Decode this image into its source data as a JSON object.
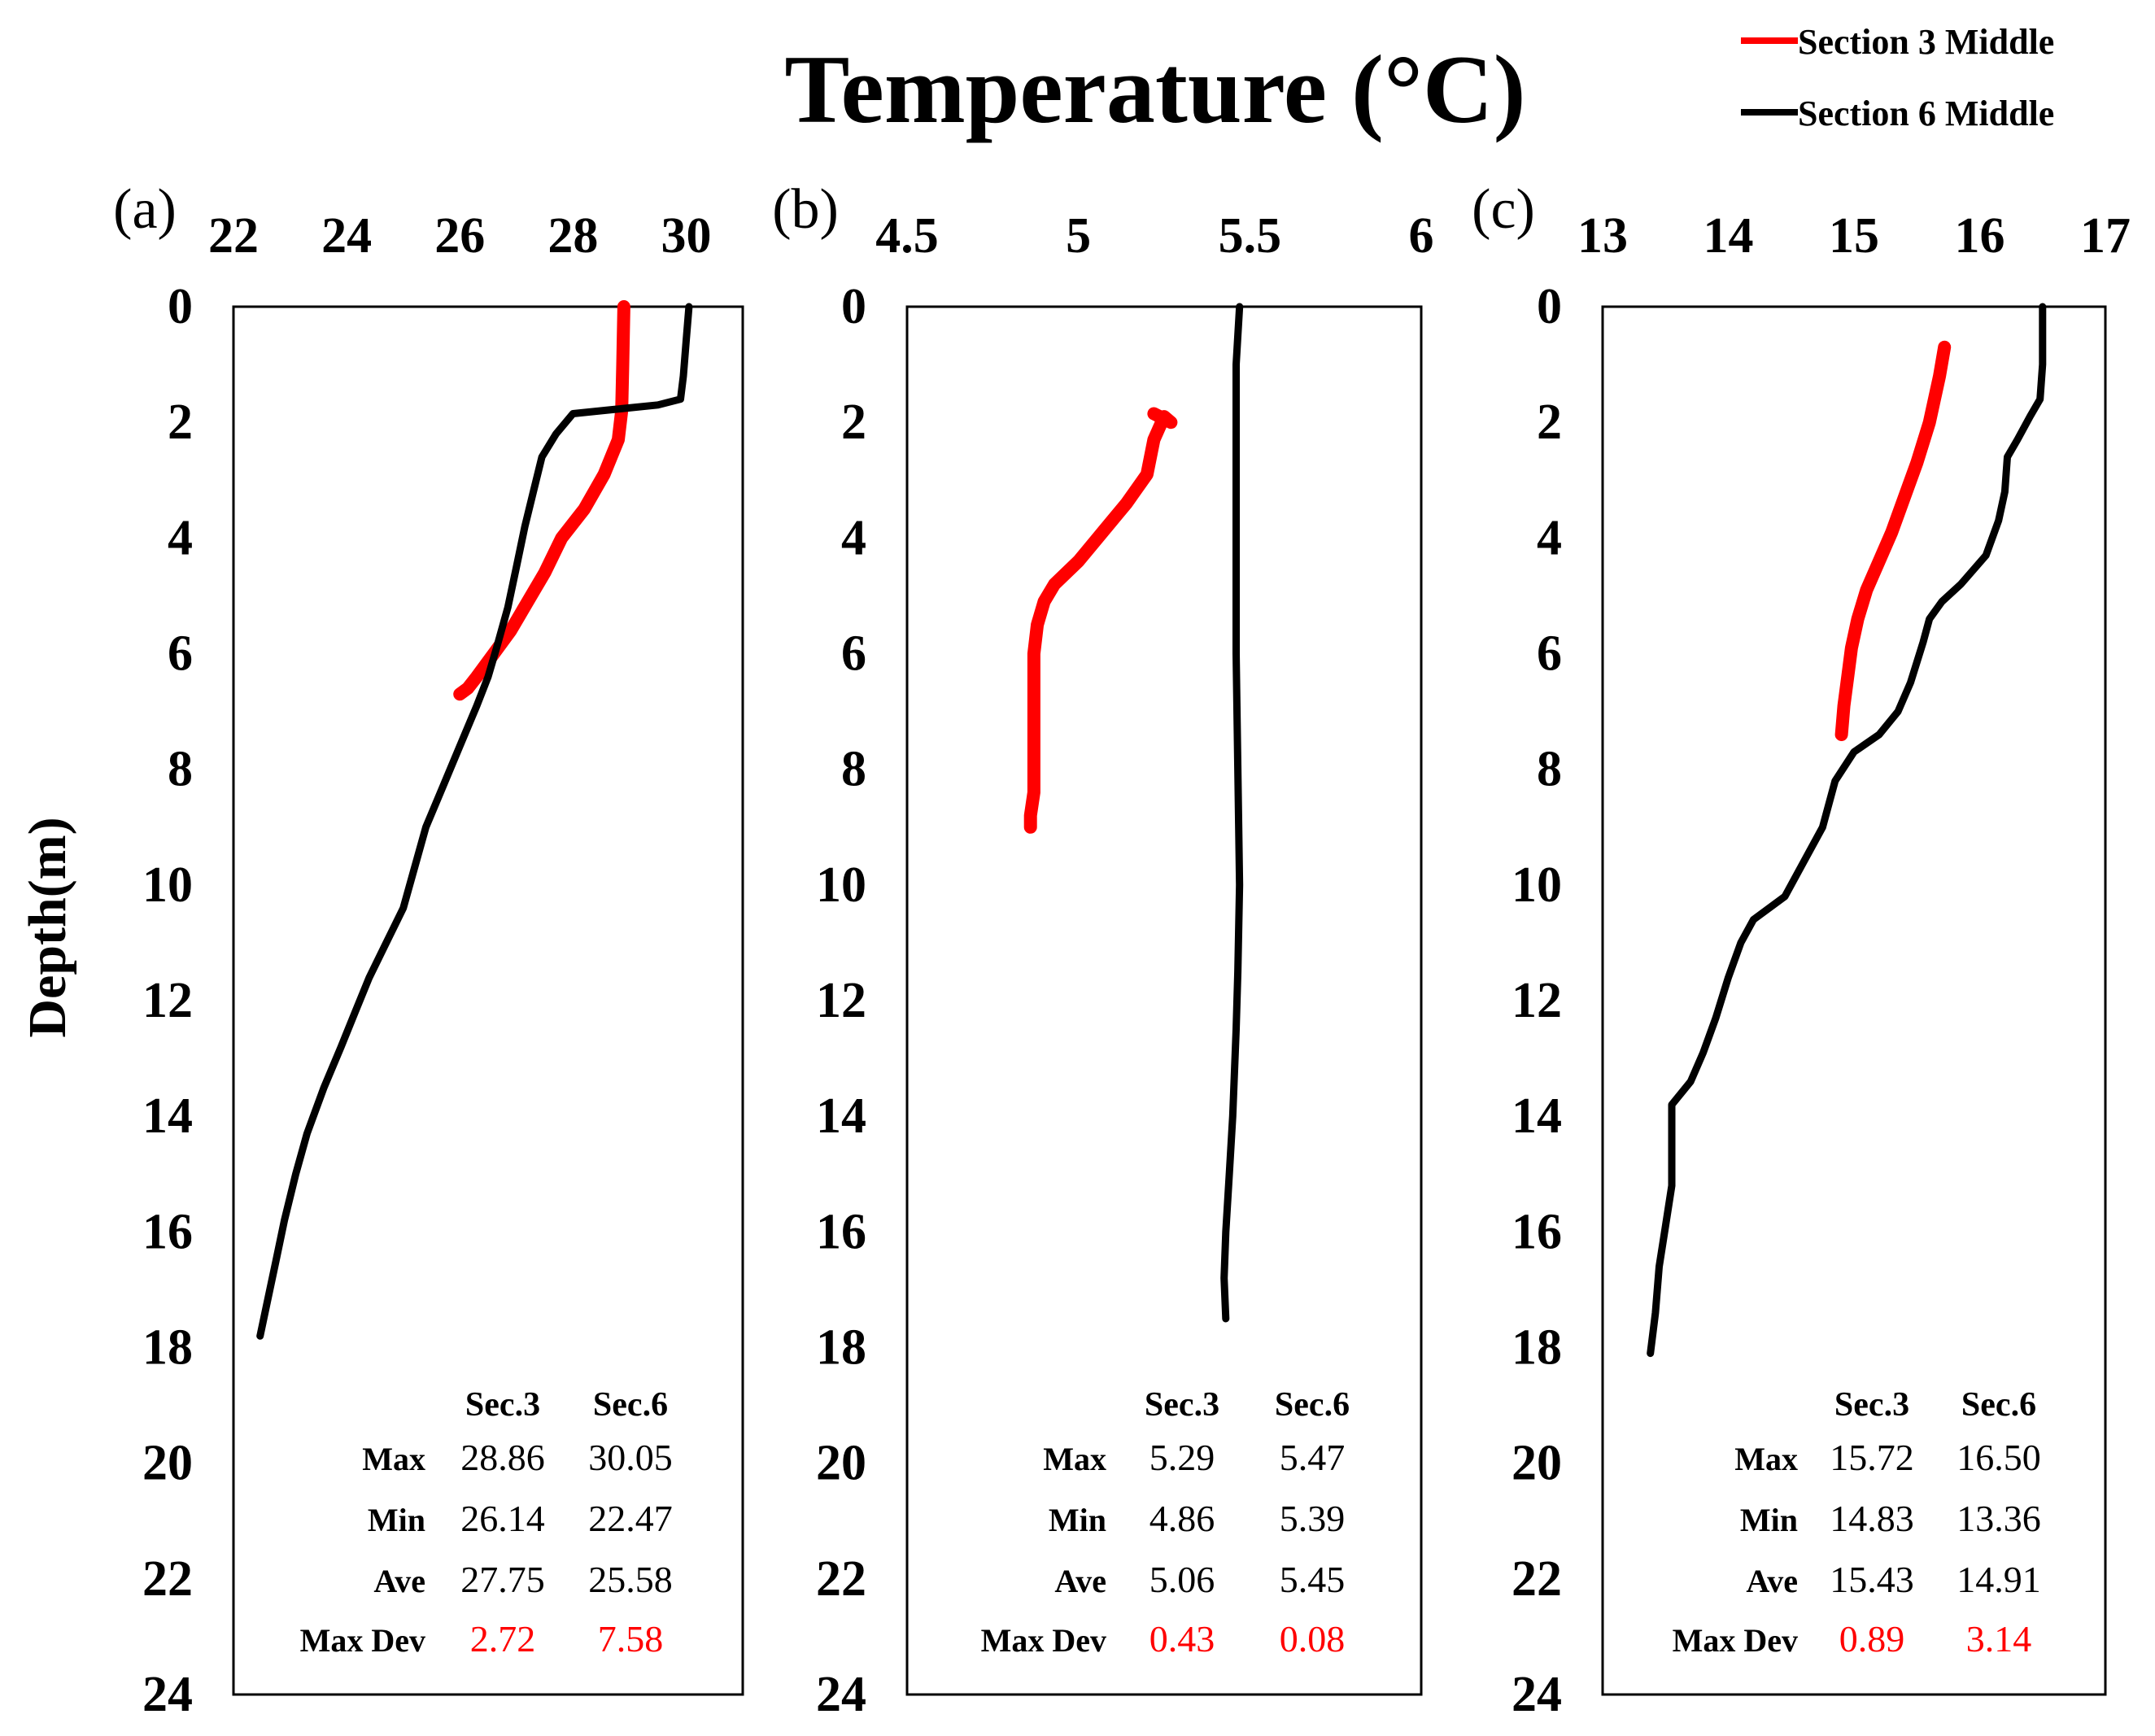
{
  "chart_data": {
    "type": "line",
    "title": "Temperature (°C)",
    "ylabel": "Depth(m)",
    "y_axis": {
      "range": [
        0,
        24
      ],
      "ticks": [
        0,
        2,
        4,
        6,
        8,
        10,
        12,
        14,
        16,
        18,
        20,
        22,
        24
      ],
      "inverted": true
    },
    "legend": {
      "placement": "top-right",
      "entries": [
        {
          "name": "Section 3 Middle",
          "color": "#ff0000"
        },
        {
          "name": "Section 6 Middle",
          "color": "#000000"
        }
      ]
    },
    "stats_headers": [
      "Sec.3",
      "Sec.6"
    ],
    "stats_row_labels": [
      "Max",
      "Min",
      "Ave",
      "Max Dev"
    ],
    "panels": [
      {
        "label": "(a)",
        "xlim": [
          22,
          31
        ],
        "xticks": [
          "22",
          "24",
          "26",
          "28",
          "30"
        ],
        "xtick_values": [
          22,
          24,
          26,
          28,
          30
        ],
        "series": [
          {
            "name": "Section 3 Middle",
            "color": "#ff0000",
            "points": [
              [
                28.9,
                0.0
              ],
              [
                28.88,
                1.0
              ],
              [
                28.86,
                1.8
              ],
              [
                28.8,
                2.3
              ],
              [
                28.55,
                2.9
              ],
              [
                28.2,
                3.5
              ],
              [
                27.8,
                4.0
              ],
              [
                27.5,
                4.6
              ],
              [
                27.2,
                5.1
              ],
              [
                26.9,
                5.6
              ],
              [
                26.6,
                6.0
              ],
              [
                26.3,
                6.4
              ],
              [
                26.14,
                6.6
              ],
              [
                26.0,
                6.7
              ]
            ]
          },
          {
            "name": "Section 6 Middle",
            "color": "#000000",
            "points": [
              [
                30.05,
                0.0
              ],
              [
                30.0,
                0.6
              ],
              [
                29.95,
                1.2
              ],
              [
                29.9,
                1.6
              ],
              [
                29.5,
                1.7
              ],
              [
                28.7,
                1.78
              ],
              [
                28.0,
                1.85
              ],
              [
                27.7,
                2.2
              ],
              [
                27.45,
                2.6
              ],
              [
                27.3,
                3.2
              ],
              [
                27.15,
                3.8
              ],
              [
                27.0,
                4.5
              ],
              [
                26.85,
                5.2
              ],
              [
                26.65,
                5.9
              ],
              [
                26.5,
                6.4
              ],
              [
                26.3,
                6.9
              ],
              [
                26.0,
                7.6
              ],
              [
                25.7,
                8.3
              ],
              [
                25.4,
                9.0
              ],
              [
                25.2,
                9.7
              ],
              [
                25.0,
                10.4
              ],
              [
                24.7,
                11.0
              ],
              [
                24.4,
                11.6
              ],
              [
                24.15,
                12.2
              ],
              [
                23.9,
                12.8
              ],
              [
                23.6,
                13.5
              ],
              [
                23.3,
                14.3
              ],
              [
                23.1,
                15.0
              ],
              [
                22.9,
                15.8
              ],
              [
                22.75,
                16.5
              ],
              [
                22.6,
                17.2
              ],
              [
                22.47,
                17.8
              ]
            ]
          }
        ],
        "stats": [
          {
            "label": "Max",
            "values": [
              "28.86",
              "30.05"
            ]
          },
          {
            "label": "Min",
            "values": [
              "26.14",
              "22.47"
            ]
          },
          {
            "label": "Ave",
            "values": [
              "27.75",
              "25.58"
            ]
          },
          {
            "label": "Max Dev",
            "values": [
              "2.72",
              "7.58"
            ]
          }
        ]
      },
      {
        "label": "(b)",
        "xlim": [
          4.5,
          6.0
        ],
        "xticks": [
          "4.5",
          "5",
          "5.5",
          "6"
        ],
        "xtick_values": [
          4.5,
          5.0,
          5.5,
          6.0
        ],
        "series": [
          {
            "name": "Section 3 Middle",
            "color": "#ff0000",
            "points": [
              [
                5.22,
                1.85
              ],
              [
                5.27,
                2.0
              ],
              [
                5.25,
                1.9
              ],
              [
                5.22,
                2.3
              ],
              [
                5.2,
                2.9
              ],
              [
                5.14,
                3.4
              ],
              [
                5.07,
                3.9
              ],
              [
                5.0,
                4.4
              ],
              [
                4.93,
                4.8
              ],
              [
                4.9,
                5.1
              ],
              [
                4.88,
                5.5
              ],
              [
                4.87,
                6.0
              ],
              [
                4.87,
                6.6
              ],
              [
                4.87,
                7.2
              ],
              [
                4.87,
                7.8
              ],
              [
                4.87,
                8.4
              ],
              [
                4.86,
                8.8
              ],
              [
                4.86,
                9.0
              ]
            ]
          },
          {
            "name": "Section 6 Middle",
            "color": "#000000",
            "points": [
              [
                5.47,
                0.0
              ],
              [
                5.46,
                1.0
              ],
              [
                5.46,
                2.0
              ],
              [
                5.46,
                4.0
              ],
              [
                5.46,
                6.0
              ],
              [
                5.465,
                8.0
              ],
              [
                5.47,
                10.0
              ],
              [
                5.465,
                11.5
              ],
              [
                5.46,
                12.5
              ],
              [
                5.45,
                14.0
              ],
              [
                5.44,
                15.0
              ],
              [
                5.43,
                16.0
              ],
              [
                5.425,
                16.8
              ],
              [
                5.43,
                17.5
              ]
            ]
          }
        ],
        "stats": [
          {
            "label": "Max",
            "values": [
              "5.29",
              "5.47"
            ]
          },
          {
            "label": "Min",
            "values": [
              "4.86",
              "5.39"
            ]
          },
          {
            "label": "Ave",
            "values": [
              "5.06",
              "5.45"
            ]
          },
          {
            "label": "Max Dev",
            "values": [
              "0.43",
              "0.08"
            ]
          }
        ]
      },
      {
        "label": "(c)",
        "xlim": [
          13,
          17
        ],
        "xticks": [
          "13",
          "14",
          "15",
          "16",
          "17"
        ],
        "xtick_values": [
          13,
          14,
          15,
          16,
          17
        ],
        "series": [
          {
            "name": "Section 3 Middle",
            "color": "#ff0000",
            "points": [
              [
                15.72,
                0.7
              ],
              [
                15.68,
                1.2
              ],
              [
                15.6,
                2.0
              ],
              [
                15.5,
                2.7
              ],
              [
                15.4,
                3.3
              ],
              [
                15.3,
                3.9
              ],
              [
                15.2,
                4.4
              ],
              [
                15.1,
                4.9
              ],
              [
                15.03,
                5.4
              ],
              [
                14.98,
                5.9
              ],
              [
                14.95,
                6.4
              ],
              [
                14.92,
                6.9
              ],
              [
                14.9,
                7.4
              ]
            ]
          },
          {
            "name": "Section 6 Middle",
            "color": "#000000",
            "points": [
              [
                16.5,
                0.0
              ],
              [
                16.5,
                1.0
              ],
              [
                16.48,
                1.6
              ],
              [
                16.4,
                1.9
              ],
              [
                16.3,
                2.3
              ],
              [
                16.22,
                2.6
              ],
              [
                16.2,
                3.2
              ],
              [
                16.15,
                3.7
              ],
              [
                16.05,
                4.3
              ],
              [
                15.85,
                4.8
              ],
              [
                15.7,
                5.1
              ],
              [
                15.6,
                5.4
              ],
              [
                15.55,
                5.8
              ],
              [
                15.45,
                6.5
              ],
              [
                15.35,
                7.0
              ],
              [
                15.2,
                7.4
              ],
              [
                15.0,
                7.7
              ],
              [
                14.85,
                8.2
              ],
              [
                14.75,
                9.0
              ],
              [
                14.6,
                9.6
              ],
              [
                14.45,
                10.2
              ],
              [
                14.2,
                10.6
              ],
              [
                14.1,
                11.0
              ],
              [
                14.0,
                11.6
              ],
              [
                13.9,
                12.3
              ],
              [
                13.8,
                12.9
              ],
              [
                13.7,
                13.4
              ],
              [
                13.55,
                13.8
              ],
              [
                13.55,
                14.5
              ],
              [
                13.55,
                15.2
              ],
              [
                13.5,
                15.9
              ],
              [
                13.45,
                16.6
              ],
              [
                13.42,
                17.4
              ],
              [
                13.38,
                18.1
              ]
            ]
          }
        ],
        "stats": [
          {
            "label": "Max",
            "values": [
              "15.72",
              "16.50"
            ]
          },
          {
            "label": "Min",
            "values": [
              "14.83",
              "13.36"
            ]
          },
          {
            "label": "Ave",
            "values": [
              "15.43",
              "14.91"
            ]
          },
          {
            "label": "Max Dev",
            "values": [
              "0.89",
              "3.14"
            ]
          }
        ]
      }
    ]
  }
}
